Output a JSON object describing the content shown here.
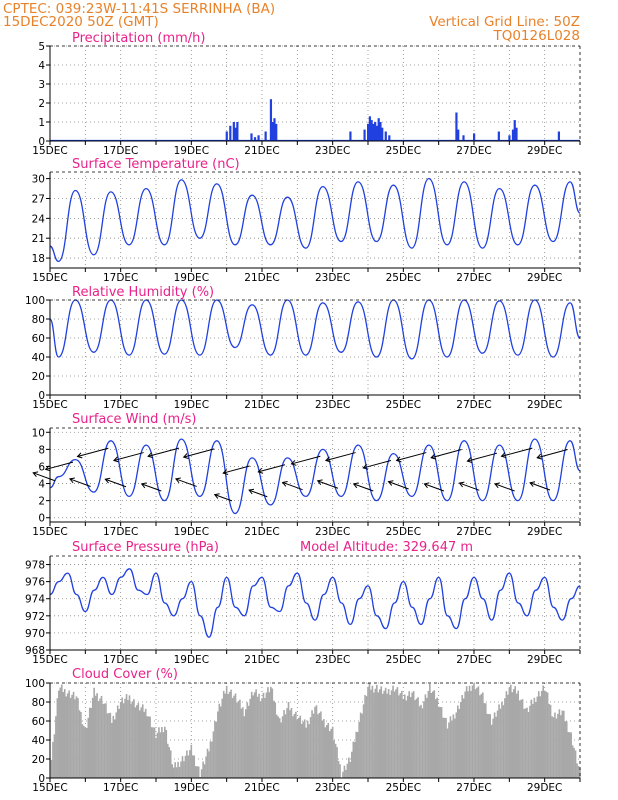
{
  "header": {
    "line1": "CPTEC:   039:23W-11:41S   SERRINHA (BA)",
    "line2": "15DEC2020 50Z (GMT)",
    "right1": "Vertical Grid Line: 50Z",
    "right2": "TQ0126L028"
  },
  "x_tick_labels": [
    "15DEC",
    "17DEC",
    "19DEC",
    "21DEC",
    "23DEC",
    "25DEC",
    "27DEC",
    "29DEC"
  ],
  "colors": {
    "line": "#2040e0",
    "cloud": "#a8a8a8",
    "header": "#e8822a",
    "title": "#e8228a"
  },
  "panels": {
    "precip": {
      "title": "Precipitation (mm/h)"
    },
    "temp": {
      "title": "Surface Temperature (nC)"
    },
    "rh": {
      "title": "Relative Humidity (%)"
    },
    "wind": {
      "title": "Surface Wind (m/s)"
    },
    "pres": {
      "title": "Surface Pressure (hPa)",
      "extra": "Model Altitude: 329.647 m"
    },
    "cloud": {
      "title": "Cloud Cover (%)"
    }
  },
  "chart_data": [
    {
      "type": "bar",
      "title": "Precipitation (mm/h)",
      "x_range_days": [
        15,
        30
      ],
      "ylim": [
        0,
        5
      ],
      "yticks": [
        0,
        1,
        2,
        3,
        4,
        5
      ],
      "x": [
        20.0,
        20.1,
        20.2,
        20.25,
        20.3,
        20.7,
        20.8,
        20.9,
        21.1,
        21.25,
        21.3,
        21.35,
        21.4,
        23.5,
        23.9,
        24.0,
        24.05,
        24.1,
        24.15,
        24.2,
        24.25,
        24.3,
        24.35,
        24.4,
        24.5,
        24.6,
        26.5,
        26.55,
        26.7,
        27.0,
        27.7,
        28.0,
        28.1,
        28.15,
        28.2,
        29.4
      ],
      "values": [
        0.5,
        0.8,
        1.0,
        0.7,
        1.0,
        0.4,
        0.2,
        0.3,
        0.5,
        2.2,
        1.0,
        1.2,
        0.9,
        0.5,
        0.6,
        0.9,
        1.3,
        1.1,
        0.9,
        1.0,
        0.8,
        1.2,
        1.0,
        0.7,
        0.5,
        0.3,
        1.5,
        0.6,
        0.3,
        0.4,
        0.5,
        0.3,
        0.6,
        1.1,
        0.7,
        0.5
      ]
    },
    {
      "type": "line",
      "title": "Surface Temperature (nC)",
      "x_range_days": [
        15,
        30
      ],
      "ylim": [
        16.5,
        31
      ],
      "yticks": [
        18,
        21,
        24,
        27,
        30
      ],
      "daily_max": [
        28.2,
        28.0,
        28.5,
        29.8,
        29.2,
        27.5,
        27.2,
        28.8,
        29.5,
        29.0,
        30.0,
        29.5,
        28.5,
        29.0,
        29.5
      ],
      "daily_min": [
        17.5,
        18.5,
        20.0,
        20.0,
        21.0,
        20.0,
        20.0,
        19.5,
        20.5,
        20.5,
        19.5,
        20.0,
        19.5,
        20.0,
        20.5
      ],
      "start": 19.8,
      "end": 24.8
    },
    {
      "type": "line",
      "title": "Relative Humidity (%)",
      "x_range_days": [
        15,
        30
      ],
      "ylim": [
        0,
        100
      ],
      "yticks": [
        0,
        20,
        40,
        60,
        80,
        100
      ],
      "daily_max": [
        100,
        100,
        100,
        100,
        100,
        95,
        100,
        97,
        98,
        100,
        100,
        100,
        99,
        100,
        97
      ],
      "daily_min": [
        40,
        45,
        42,
        43,
        42,
        50,
        42,
        42,
        45,
        40,
        38,
        40,
        44,
        42,
        40
      ],
      "start": 80,
      "end": 60
    },
    {
      "type": "line",
      "title": "Surface Wind (m/s)",
      "x_range_days": [
        15,
        30
      ],
      "ylim": [
        -0.5,
        10.5
      ],
      "yticks": [
        0,
        2,
        4,
        6,
        8,
        10
      ],
      "daily_max": [
        6.8,
        9.0,
        8.5,
        9.2,
        9.0,
        7.0,
        7.0,
        8.0,
        8.5,
        7.5,
        8.5,
        9.0,
        8.5,
        9.2,
        9.0
      ],
      "daily_min": [
        4.8,
        3.0,
        2.5,
        2.0,
        2.5,
        0.5,
        1.5,
        2.5,
        2.5,
        2.0,
        2.5,
        2.0,
        2.0,
        2.0,
        2.0
      ],
      "start": 3.5,
      "end": 5.5,
      "arrows": "wind vectors shown along the curve, generally pointing west/southwest"
    },
    {
      "type": "line",
      "title": "Surface Pressure (hPa)",
      "annotation": "Model Altitude: 329.647 m",
      "x_range_days": [
        15,
        30
      ],
      "ylim": [
        968,
        979
      ],
      "yticks": [
        968,
        970,
        972,
        974,
        976,
        978
      ],
      "series": [
        {
          "x": [
            15.0,
            15.25,
            15.5,
            15.75,
            16.0,
            16.25,
            16.5,
            16.75,
            17.0,
            17.25,
            17.5,
            17.75,
            18.0,
            18.25,
            18.5,
            18.75,
            19.0,
            19.25,
            19.5,
            19.75,
            20.0,
            20.25,
            20.5,
            20.75,
            21.0,
            21.25,
            21.5,
            21.75,
            22.0,
            22.25,
            22.5,
            22.75,
            23.0,
            23.25,
            23.5,
            23.75,
            24.0,
            24.25,
            24.5,
            24.75,
            25.0,
            25.25,
            25.5,
            25.75,
            26.0,
            26.25,
            26.5,
            26.75,
            27.0,
            27.25,
            27.5,
            27.75,
            28.0,
            28.25,
            28.5,
            28.75,
            29.0,
            29.25,
            29.5,
            29.75,
            30.0
          ],
          "values": [
            974.5,
            976.0,
            977.0,
            974.5,
            972.5,
            975.0,
            976.5,
            974.5,
            976.5,
            977.5,
            975.0,
            974.5,
            977.0,
            973.5,
            972.0,
            974.0,
            976.0,
            972.0,
            969.5,
            973.0,
            976.5,
            973.0,
            972.0,
            975.5,
            976.5,
            973.0,
            972.5,
            975.5,
            977.0,
            973.5,
            971.5,
            974.5,
            976.5,
            973.5,
            971.0,
            974.0,
            975.5,
            972.0,
            970.5,
            973.5,
            976.0,
            973.0,
            971.0,
            974.0,
            976.5,
            972.0,
            970.5,
            974.0,
            976.5,
            974.0,
            971.5,
            975.0,
            977.0,
            973.5,
            972.0,
            975.0,
            976.5,
            973.0,
            971.5,
            974.0,
            975.5
          ]
        }
      ]
    },
    {
      "type": "bar",
      "title": "Cloud Cover (%)",
      "x_range_days": [
        15,
        30
      ],
      "ylim": [
        0,
        100
      ],
      "yticks": [
        0,
        20,
        40,
        60,
        80,
        100
      ],
      "x": [
        15.0,
        15.25,
        15.5,
        15.75,
        16.0,
        16.25,
        16.5,
        16.75,
        17.0,
        17.25,
        17.5,
        17.75,
        18.0,
        18.25,
        18.5,
        18.75,
        19.0,
        19.25,
        19.5,
        19.75,
        20.0,
        20.25,
        20.5,
        20.75,
        21.0,
        21.25,
        21.5,
        21.75,
        22.0,
        22.25,
        22.5,
        22.75,
        23.0,
        23.25,
        23.5,
        23.75,
        24.0,
        24.25,
        24.5,
        24.75,
        25.0,
        25.25,
        25.5,
        25.75,
        26.0,
        26.25,
        26.5,
        26.75,
        27.0,
        27.25,
        27.5,
        27.75,
        28.0,
        28.25,
        28.5,
        28.75,
        29.0,
        29.25,
        29.5,
        29.75,
        30.0
      ],
      "values": [
        5,
        95,
        90,
        85,
        50,
        90,
        82,
        60,
        80,
        85,
        75,
        70,
        45,
        55,
        10,
        20,
        30,
        5,
        30,
        70,
        95,
        85,
        70,
        90,
        85,
        95,
        60,
        75,
        65,
        55,
        75,
        60,
        50,
        5,
        20,
        60,
        95,
        95,
        90,
        95,
        85,
        90,
        75,
        95,
        80,
        55,
        70,
        90,
        100,
        85,
        60,
        75,
        95,
        90,
        70,
        85,
        95,
        65,
        70,
        45,
        5
      ]
    }
  ]
}
